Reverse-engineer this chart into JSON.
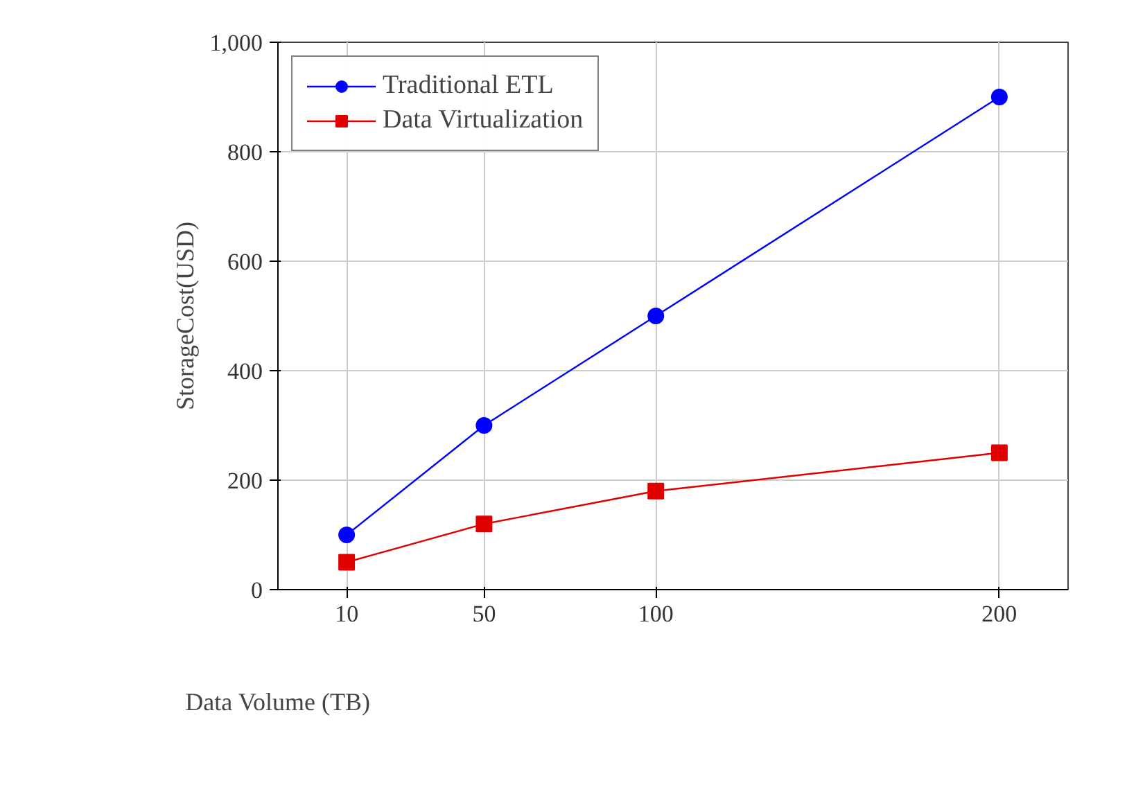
{
  "chart_data": {
    "type": "line",
    "xlabel": "Data Volume (TB)",
    "ylabel": "StorageCost(USD)",
    "x": [
      10,
      50,
      100,
      200
    ],
    "series": [
      {
        "name": "Traditional ETL",
        "color": "#0000ff",
        "values": [
          100,
          300,
          500,
          900
        ],
        "marker": "circle"
      },
      {
        "name": "Data Virtualization",
        "color": "#e00000",
        "values": [
          50,
          120,
          180,
          250
        ],
        "marker": "square"
      }
    ],
    "xlim": [
      -10,
      220
    ],
    "xticks": [
      10,
      50,
      100,
      200
    ],
    "ylim": [
      0,
      1000
    ],
    "yticks": [
      0,
      200,
      400,
      600,
      800,
      {
        "value": 1000,
        "label": "1,000"
      }
    ],
    "grid": true,
    "legend": "top left",
    "line_style": "solid"
  }
}
